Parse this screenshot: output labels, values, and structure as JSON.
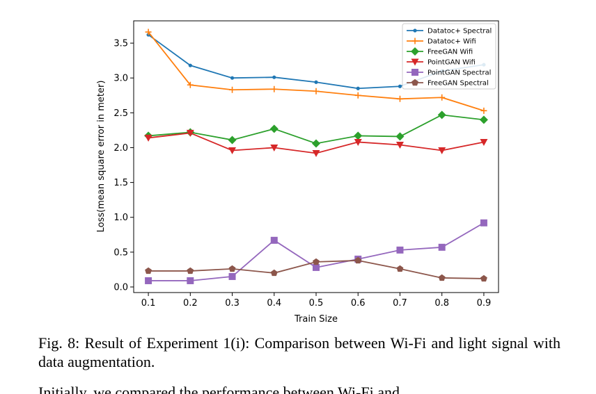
{
  "chart_data": {
    "type": "line",
    "xlabel": "Train Size",
    "ylabel": "Loss(mean square error in meter)",
    "x": [
      0.1,
      0.2,
      0.3,
      0.4,
      0.5,
      0.6,
      0.7,
      0.8,
      0.9
    ],
    "x_ticks": [
      "0.1",
      "0.2",
      "0.3",
      "0.4",
      "0.5",
      "0.6",
      "0.7",
      "0.8",
      "0.9"
    ],
    "y_ticks": [
      "0.0",
      "0.5",
      "1.0",
      "1.5",
      "2.0",
      "2.5",
      "3.0",
      "3.5"
    ],
    "xlim": [
      0.065,
      0.935
    ],
    "ylim": [
      -0.08,
      3.82
    ],
    "grid": false,
    "legend_position": "top-right",
    "series": [
      {
        "name": "Datatoc+ Spectral",
        "color": "#1f77b4",
        "marker": "point",
        "values": [
          3.62,
          3.18,
          3.0,
          3.01,
          2.94,
          2.85,
          2.88,
          3.1,
          3.19
        ]
      },
      {
        "name": "Datatoc+ Wifi",
        "color": "#ff7f0e",
        "marker": "plus",
        "values": [
          3.66,
          2.9,
          2.83,
          2.84,
          2.81,
          2.75,
          2.7,
          2.72,
          2.53
        ]
      },
      {
        "name": "FreeGAN Wifi",
        "color": "#2ca02c",
        "marker": "diamond",
        "values": [
          2.17,
          2.22,
          2.11,
          2.27,
          2.06,
          2.17,
          2.16,
          2.47,
          2.4
        ]
      },
      {
        "name": "PointGAN Wifi",
        "color": "#d62728",
        "marker": "triangle-down",
        "values": [
          2.14,
          2.21,
          1.96,
          2.0,
          1.92,
          2.08,
          2.04,
          1.96,
          2.08
        ]
      },
      {
        "name": "PointGAN Spectral",
        "color": "#9467bd",
        "marker": "square",
        "values": [
          0.09,
          0.09,
          0.15,
          0.67,
          0.28,
          0.4,
          0.53,
          0.57,
          0.92
        ]
      },
      {
        "name": "FreeGAN Spectral",
        "color": "#8c564b",
        "marker": "pentagon",
        "values": [
          0.23,
          0.23,
          0.26,
          0.2,
          0.36,
          0.38,
          0.26,
          0.13,
          0.12
        ]
      }
    ]
  },
  "caption": "Fig. 8: Result of Experiment 1(i): Comparison between Wi-Fi and light signal with data augmentation.",
  "body_text": "Initially, we compared the performance between Wi-Fi and"
}
